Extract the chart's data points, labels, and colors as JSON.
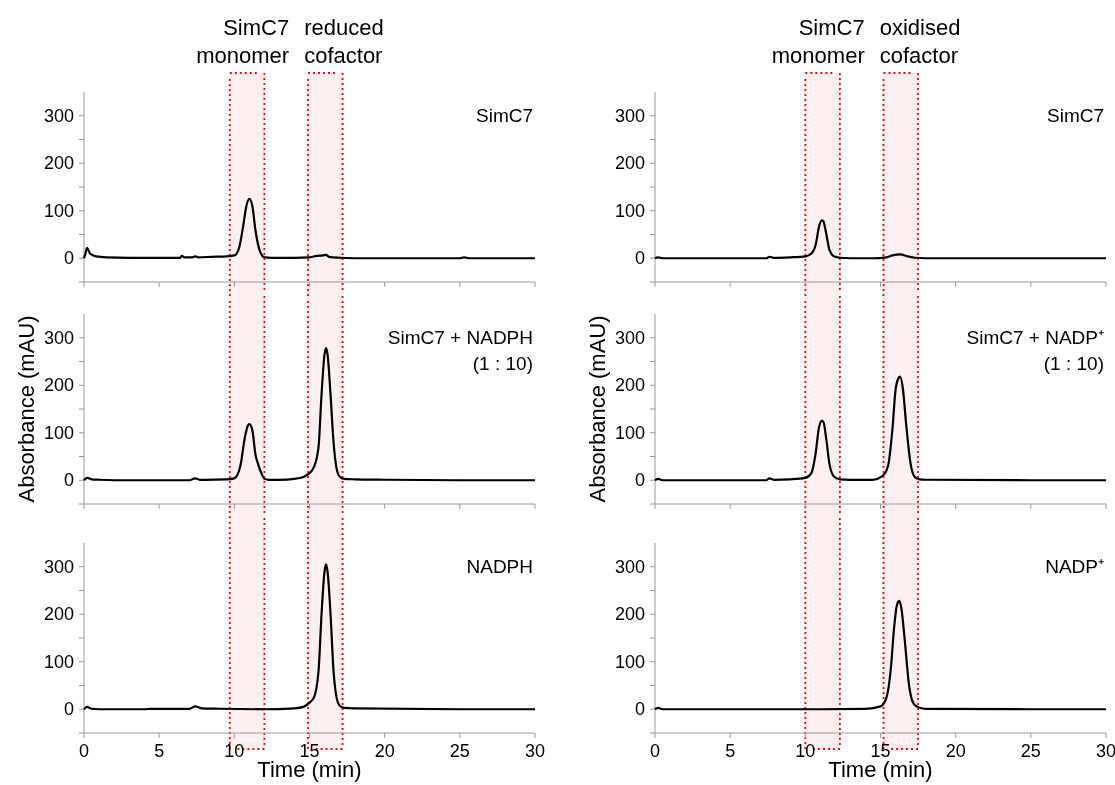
{
  "chart_data": [
    {
      "type": "line",
      "x": [
        0,
        0.1,
        0.2,
        0.4,
        0.8,
        1.5,
        3,
        5,
        6.4,
        6.5,
        6.7,
        7.2,
        7.4,
        7.6,
        8.5,
        9.5,
        10.0,
        10.3,
        10.6,
        10.8,
        11.0,
        11.2,
        11.4,
        11.7,
        12.0,
        12.5,
        14,
        15,
        15.5,
        15.9,
        16.1,
        16.3,
        17,
        18,
        20,
        25,
        25.3,
        25.6,
        30
      ],
      "series": [
        {
          "color": "#000000",
          "values": [
            0,
            10,
            22,
            10,
            4,
            2,
            1,
            1,
            1,
            5,
            2,
            2,
            4,
            2,
            3,
            4,
            6,
            20,
            70,
            110,
            125,
            110,
            60,
            15,
            2,
            1,
            1,
            2,
            5,
            6,
            7,
            3,
            1,
            0,
            0,
            0,
            2,
            0,
            0
          ]
        }
      ],
      "xlim": [
        0,
        30
      ],
      "ylim": [
        -50,
        350
      ],
      "xticks": [
        0,
        5,
        10,
        15,
        20,
        25,
        30
      ],
      "yticks": [
        {
          "value": -50,
          "label": null
        },
        0,
        {
          "value": 50,
          "label": null
        },
        100,
        {
          "value": 150,
          "label": null
        },
        200,
        {
          "value": 250,
          "label": null
        },
        300
      ],
      "tick_labels": "y",
      "annotations": [
        "SimC7"
      ],
      "bands": [
        {
          "axis": "x",
          "from": 9.7,
          "to": 12.0,
          "label": "SimC7 monomer",
          "color": "#ff0000"
        },
        {
          "axis": "x",
          "from": 14.9,
          "to": 17.2,
          "label": "reduced cofactor",
          "color": "#ff0000"
        }
      ]
    },
    {
      "type": "line",
      "x": [
        0,
        0.2,
        0.5,
        1,
        2,
        4,
        7,
        7.4,
        7.7,
        8,
        9.5,
        10.0,
        10.4,
        10.7,
        10.9,
        11.0,
        11.2,
        11.4,
        11.6,
        11.8,
        12.0,
        12.3,
        13,
        14,
        14.6,
        15.0,
        15.3,
        15.6,
        15.8,
        16.0,
        16.1,
        16.2,
        16.4,
        16.6,
        16.8,
        17.0,
        17.3,
        18,
        20,
        25,
        30
      ],
      "series": [
        {
          "color": "#000000",
          "values": [
            0,
            5,
            2,
            1,
            0,
            0,
            0,
            4,
            1,
            1,
            2,
            4,
            30,
            90,
            115,
            118,
            105,
            55,
            32,
            15,
            3,
            1,
            1,
            3,
            7,
            15,
            28,
            70,
            180,
            265,
            278,
            265,
            180,
            80,
            25,
            8,
            3,
            2,
            1,
            0,
            0
          ]
        }
      ],
      "xlim": [
        0,
        30
      ],
      "ylim": [
        -50,
        350
      ],
      "xticks": [
        0,
        5,
        10,
        15,
        20,
        25,
        30
      ],
      "yticks": [
        {
          "value": -50,
          "label": null
        },
        0,
        {
          "value": 50,
          "label": null
        },
        100,
        {
          "value": 150,
          "label": null
        },
        200,
        {
          "value": 250,
          "label": null
        },
        300
      ],
      "tick_labels": "y",
      "ylabel": "Absorbance (mAU)",
      "annotations": [
        "SimC7 + NADPH",
        "(1 : 10)"
      ],
      "bands": [
        {
          "axis": "x",
          "from": 9.7,
          "to": 12.0,
          "color": "#ff0000"
        },
        {
          "axis": "x",
          "from": 14.9,
          "to": 17.2,
          "color": "#ff0000"
        }
      ]
    },
    {
      "type": "line",
      "x": [
        0,
        0.2,
        0.5,
        1,
        4,
        4.4,
        7,
        7.4,
        7.8,
        9,
        12,
        14,
        14.6,
        15.0,
        15.3,
        15.6,
        15.8,
        16.0,
        16.1,
        16.2,
        16.4,
        16.6,
        16.8,
        17.0,
        17.3,
        18,
        25,
        30
      ],
      "series": [
        {
          "color": "#000000",
          "values": [
            0,
            5,
            1,
            0,
            0,
            1,
            1,
            6,
            2,
            1,
            0,
            2,
            5,
            14,
            25,
            80,
            200,
            290,
            305,
            290,
            200,
            80,
            25,
            8,
            3,
            2,
            0,
            0
          ]
        }
      ],
      "xlim": [
        0,
        30
      ],
      "ylim": [
        -50,
        350
      ],
      "xticks": [
        0,
        5,
        10,
        15,
        20,
        25,
        30
      ],
      "yticks": [
        {
          "value": -50,
          "label": null
        },
        0,
        {
          "value": 50,
          "label": null
        },
        100,
        {
          "value": 150,
          "label": null
        },
        200,
        {
          "value": 250,
          "label": null
        },
        300
      ],
      "xlabel": "Time (min)",
      "annotations": [
        "NADPH"
      ],
      "bands": [
        {
          "axis": "x",
          "from": 9.7,
          "to": 12.0,
          "color": "#ff0000"
        },
        {
          "axis": "x",
          "from": 14.9,
          "to": 17.2,
          "color": "#ff0000"
        }
      ]
    },
    {
      "type": "line",
      "x": [
        0,
        0.2,
        0.5,
        5,
        7.4,
        7.6,
        7.9,
        9,
        10,
        10.4,
        10.7,
        10.9,
        11.1,
        11.2,
        11.4,
        11.6,
        11.9,
        12.3,
        13,
        14.5,
        15.4,
        15.8,
        16.3,
        16.8,
        17.3,
        18,
        25,
        30
      ],
      "series": [
        {
          "color": "#000000",
          "values": [
            0,
            2,
            0,
            0,
            0,
            3,
            1,
            2,
            4,
            10,
            30,
            65,
            80,
            78,
            50,
            18,
            4,
            1,
            0,
            0,
            2,
            6,
            8,
            4,
            1,
            0,
            0,
            0
          ]
        }
      ],
      "xlim": [
        0,
        30
      ],
      "ylim": [
        -50,
        350
      ],
      "xticks": [
        0,
        5,
        10,
        15,
        20,
        25,
        30
      ],
      "yticks": [
        {
          "value": -50,
          "label": null
        },
        0,
        {
          "value": 50,
          "label": null
        },
        100,
        {
          "value": 150,
          "label": null
        },
        200,
        {
          "value": 250,
          "label": null
        },
        300
      ],
      "tick_labels": "y",
      "annotations": [
        "SimC7"
      ],
      "bands": [
        {
          "axis": "x",
          "from": 10.0,
          "to": 12.3,
          "label": "SimC7 monomer",
          "color": "#ff0000"
        },
        {
          "axis": "x",
          "from": 15.2,
          "to": 17.5,
          "label": "oxidised cofactor",
          "color": "#ff0000"
        }
      ]
    },
    {
      "type": "line",
      "x": [
        0,
        0.2,
        0.5,
        5,
        7.4,
        7.6,
        7.9,
        9,
        10,
        10.4,
        10.7,
        10.9,
        11.1,
        11.2,
        11.4,
        11.6,
        11.9,
        12.3,
        13,
        14.5,
        15.1,
        15.5,
        15.8,
        16.0,
        16.2,
        16.3,
        16.5,
        16.7,
        17.0,
        17.3,
        17.6,
        18,
        25,
        30
      ],
      "series": [
        {
          "color": "#000000",
          "values": [
            0,
            3,
            0,
            0,
            0,
            4,
            1,
            2,
            5,
            15,
            60,
            110,
            125,
            123,
            85,
            35,
            8,
            2,
            1,
            1,
            8,
            30,
            110,
            190,
            215,
            218,
            190,
            120,
            35,
            6,
            2,
            1,
            0,
            0
          ]
        }
      ],
      "xlim": [
        0,
        30
      ],
      "ylim": [
        -50,
        350
      ],
      "xticks": [
        0,
        5,
        10,
        15,
        20,
        25,
        30
      ],
      "yticks": [
        {
          "value": -50,
          "label": null
        },
        0,
        {
          "value": 50,
          "label": null
        },
        100,
        {
          "value": 150,
          "label": null
        },
        200,
        {
          "value": 250,
          "label": null
        },
        300
      ],
      "tick_labels": "y",
      "ylabel": "Absorbance (mAU)",
      "annotations": [
        "SimC7 + NADP⁺",
        "(1 : 10)"
      ],
      "bands": [
        {
          "axis": "x",
          "from": 10.0,
          "to": 12.3,
          "color": "#ff0000"
        },
        {
          "axis": "x",
          "from": 15.2,
          "to": 17.5,
          "color": "#ff0000"
        }
      ]
    },
    {
      "type": "line",
      "x": [
        0,
        0.2,
        0.5,
        5,
        10,
        14,
        15.0,
        15.4,
        15.7,
        15.9,
        16.1,
        16.25,
        16.4,
        16.6,
        16.9,
        17.2,
        17.6,
        18,
        25,
        30
      ],
      "series": [
        {
          "color": "#000000",
          "values": [
            0,
            3,
            0,
            0,
            0,
            1,
            6,
            25,
            90,
            170,
            220,
            228,
            210,
            150,
            50,
            12,
            3,
            1,
            0,
            0
          ]
        }
      ],
      "xlim": [
        0,
        30
      ],
      "ylim": [
        -50,
        350
      ],
      "xticks": [
        0,
        5,
        10,
        15,
        20,
        25,
        30
      ],
      "yticks": [
        {
          "value": -50,
          "label": null
        },
        0,
        {
          "value": 50,
          "label": null
        },
        100,
        {
          "value": 150,
          "label": null
        },
        200,
        {
          "value": 250,
          "label": null
        },
        300
      ],
      "xlabel": "Time (min)",
      "annotations": [
        "NADP⁺"
      ],
      "bands": [
        {
          "axis": "x",
          "from": 10.0,
          "to": 12.3,
          "color": "#ff0000"
        },
        {
          "axis": "x",
          "from": 15.2,
          "to": 17.5,
          "color": "#ff0000"
        }
      ]
    }
  ]
}
